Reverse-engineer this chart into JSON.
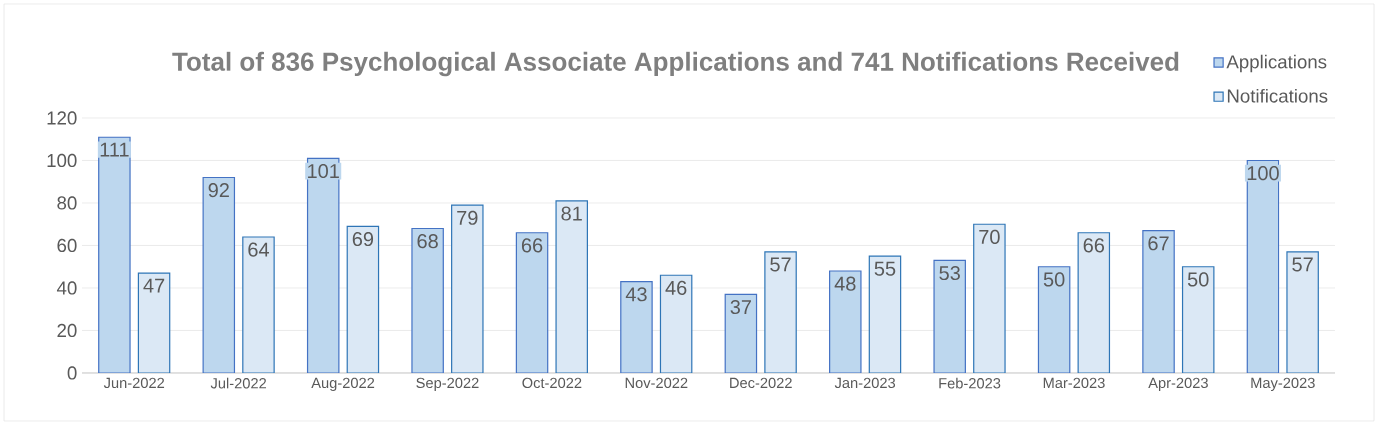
{
  "chart_data": {
    "type": "bar",
    "title": "Total of 836 Psychological Associate Applications and 741 Notifications Received",
    "categories": [
      "Jun-2022",
      "Jul-2022",
      "Aug-2022",
      "Sep-2022",
      "Oct-2022",
      "Nov-2022",
      "Dec-2022",
      "Jan-2023",
      "Feb-2023",
      "Mar-2023",
      "Apr-2023",
      "May-2023"
    ],
    "series": [
      {
        "name": "Applications",
        "color": "#bdd7ee",
        "values": [
          111,
          92,
          101,
          68,
          66,
          43,
          37,
          48,
          53,
          50,
          67,
          100
        ]
      },
      {
        "name": "Notifications",
        "color": "#dbe8f5",
        "values": [
          47,
          64,
          69,
          79,
          81,
          46,
          57,
          55,
          70,
          66,
          50,
          57
        ]
      }
    ],
    "ylim": [
      0,
      120
    ],
    "yticks": [
      0,
      20,
      40,
      60,
      80,
      100,
      120
    ],
    "grid": "y",
    "legend": "top right",
    "data_labels": true
  }
}
